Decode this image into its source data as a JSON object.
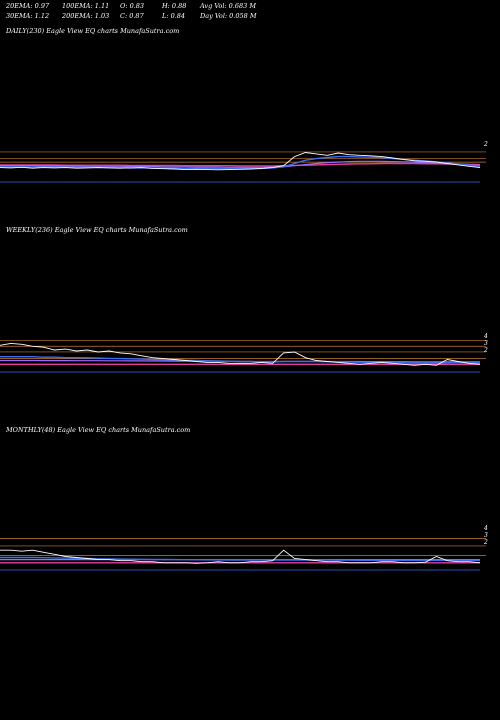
{
  "header": {
    "ema20": "20EMA: 0.97",
    "ema100": "100EMA: 1.11",
    "open": "O: 0.83",
    "high": "H: 0.88",
    "avg_vol": "Avg Vol: 0.683 M",
    "ema30": "30EMA: 1.12",
    "ema200": "200EMA: 1.03",
    "close": "C: 0.87",
    "low": "L: 0.84",
    "day_vol": "Day Vol: 0.058 M"
  },
  "panels": {
    "daily": {
      "title": "DAILY(230) Eagle   View  EQ charts MunafaSutra.com"
    },
    "weekly": {
      "title": "WEEKLY(236) Eagle   View  EQ charts MunafaSutra.com"
    },
    "monthly": {
      "title": "MONTHLY(48) Eagle   View  EQ charts MunafaSutra.com"
    }
  },
  "colors": {
    "price": "#ffffff",
    "ema_blue": "#3a6df0",
    "ema_pink": "#e0409a",
    "ema_purple": "#9b6bff",
    "level_orange": "#c87830",
    "volume": "#ffffff"
  },
  "chart_data": [
    {
      "type": "line",
      "title": "DAILY(230) Eagle   View  EQ charts MunafaSutra.com",
      "y_labels": [
        "2"
      ],
      "series": [
        {
          "values": [
            1.05,
            1.04,
            1.06,
            1.03,
            1.05,
            1.04,
            1.05,
            1.03,
            1.04,
            1.05,
            1.04,
            1.03,
            1.04,
            1.05,
            1.02,
            1.01,
            1.0,
            0.98,
            0.99,
            0.98,
            0.97,
            0.98,
            0.99,
            1.0,
            1.02,
            1.05,
            1.12,
            1.45,
            1.6,
            1.55,
            1.5,
            1.58,
            1.52,
            1.5,
            1.48,
            1.45,
            1.4,
            1.35,
            1.3,
            1.28,
            1.25,
            1.2,
            1.15,
            1.1,
            1.05
          ]
        },
        {
          "values": [
            1.08,
            1.08,
            1.08,
            1.07,
            1.07,
            1.07,
            1.06,
            1.06,
            1.06,
            1.05,
            1.05,
            1.05,
            1.04,
            1.04,
            1.04,
            1.03,
            1.03,
            1.02,
            1.02,
            1.02,
            1.01,
            1.01,
            1.01,
            1.01,
            1.02,
            1.04,
            1.08,
            1.2,
            1.32,
            1.38,
            1.42,
            1.45,
            1.45,
            1.44,
            1.43,
            1.41,
            1.38,
            1.35,
            1.32,
            1.29,
            1.26,
            1.22,
            1.18,
            1.14,
            1.1
          ]
        },
        {
          "values": [
            1.12,
            1.12,
            1.12,
            1.12,
            1.11,
            1.11,
            1.11,
            1.11,
            1.1,
            1.1,
            1.1,
            1.1,
            1.09,
            1.09,
            1.09,
            1.08,
            1.08,
            1.08,
            1.07,
            1.07,
            1.07,
            1.06,
            1.06,
            1.06,
            1.06,
            1.07,
            1.08,
            1.12,
            1.16,
            1.2,
            1.23,
            1.25,
            1.27,
            1.28,
            1.28,
            1.28,
            1.27,
            1.26,
            1.25,
            1.23,
            1.21,
            1.19,
            1.17,
            1.15,
            1.13
          ]
        },
        {
          "values": [
            1.15,
            1.15,
            1.15,
            1.15,
            1.15,
            1.15,
            1.14,
            1.14,
            1.14,
            1.14,
            1.14,
            1.14,
            1.13,
            1.13,
            1.13,
            1.13,
            1.13,
            1.12,
            1.12,
            1.12,
            1.12,
            1.12,
            1.11,
            1.11,
            1.11,
            1.11,
            1.12,
            1.13,
            1.14,
            1.15,
            1.16,
            1.17,
            1.18,
            1.19,
            1.19,
            1.2,
            1.2,
            1.2,
            1.2,
            1.19,
            1.19,
            1.18,
            1.18,
            1.17,
            1.16
          ]
        }
      ],
      "levels": [
        1.62,
        1.38,
        1.25
      ],
      "ylim": [
        0.6,
        2.2
      ]
    },
    {
      "type": "line",
      "title": "WEEKLY(236) Eagle   View  EQ charts MunafaSutra.com",
      "y_labels": [
        "4",
        "3",
        "2"
      ],
      "series": [
        {
          "values": [
            3.1,
            3.3,
            3.2,
            3.0,
            2.9,
            2.6,
            2.7,
            2.5,
            2.6,
            2.4,
            2.5,
            2.3,
            2.2,
            2.0,
            1.8,
            1.7,
            1.6,
            1.5,
            1.4,
            1.3,
            1.3,
            1.2,
            1.2,
            1.2,
            1.3,
            1.2,
            2.3,
            2.4,
            1.8,
            1.5,
            1.4,
            1.3,
            1.2,
            1.1,
            1.2,
            1.3,
            1.2,
            1.1,
            1.0,
            1.1,
            1.0,
            1.6,
            1.4,
            1.2,
            1.1
          ]
        },
        {
          "values": [
            1.9,
            1.9,
            1.9,
            1.9,
            1.85,
            1.85,
            1.8,
            1.8,
            1.78,
            1.75,
            1.72,
            1.7,
            1.68,
            1.65,
            1.6,
            1.58,
            1.55,
            1.52,
            1.5,
            1.48,
            1.45,
            1.43,
            1.4,
            1.38,
            1.36,
            1.35,
            1.38,
            1.4,
            1.4,
            1.39,
            1.37,
            1.35,
            1.33,
            1.31,
            1.3,
            1.29,
            1.28,
            1.27,
            1.26,
            1.25,
            1.24,
            1.27,
            1.28,
            1.27,
            1.26
          ]
        },
        {
          "values": [
            1.5,
            1.5,
            1.5,
            1.5,
            1.49,
            1.49,
            1.49,
            1.48,
            1.48,
            1.48,
            1.47,
            1.47,
            1.46,
            1.46,
            1.45,
            1.45,
            1.44,
            1.44,
            1.43,
            1.43,
            1.42,
            1.42,
            1.41,
            1.41,
            1.4,
            1.4,
            1.41,
            1.41,
            1.41,
            1.41,
            1.4,
            1.4,
            1.39,
            1.39,
            1.38,
            1.38,
            1.37,
            1.37,
            1.36,
            1.36,
            1.35,
            1.36,
            1.36,
            1.36,
            1.35
          ]
        },
        {
          "values": [
            1.1,
            1.1,
            1.1,
            1.1,
            1.1,
            1.1,
            1.1,
            1.1,
            1.1,
            1.1,
            1.1,
            1.1,
            1.1,
            1.1,
            1.1,
            1.1,
            1.1,
            1.1,
            1.1,
            1.1,
            1.1,
            1.1,
            1.1,
            1.1,
            1.1,
            1.1,
            1.1,
            1.1,
            1.1,
            1.1,
            1.1,
            1.1,
            1.1,
            1.1,
            1.1,
            1.1,
            1.1,
            1.1,
            1.1,
            1.1,
            1.1,
            1.1,
            1.1,
            1.1,
            1.1
          ]
        }
      ],
      "levels": [
        3.6,
        3.0,
        2.4,
        1.7
      ],
      "ylim": [
        0.5,
        4.5
      ]
    },
    {
      "type": "line",
      "title": "MONTHLY(48) Eagle   View  EQ charts MunafaSutra.com",
      "y_labels": [
        "4",
        "3",
        "2"
      ],
      "series": [
        {
          "values": [
            2.2,
            2.2,
            2.1,
            2.2,
            2.0,
            1.8,
            1.6,
            1.5,
            1.4,
            1.3,
            1.3,
            1.2,
            1.2,
            1.1,
            1.1,
            1.0,
            1.0,
            1.0,
            0.95,
            1.0,
            1.1,
            1.0,
            1.0,
            1.1,
            1.1,
            1.2,
            2.2,
            1.4,
            1.3,
            1.2,
            1.1,
            1.1,
            1.0,
            1.0,
            1.0,
            1.1,
            1.1,
            1.0,
            1.0,
            1.05,
            1.6,
            1.2,
            1.1,
            1.1,
            1.0
          ]
        },
        {
          "values": [
            1.5,
            1.5,
            1.5,
            1.5,
            1.48,
            1.46,
            1.44,
            1.42,
            1.4,
            1.38,
            1.36,
            1.35,
            1.34,
            1.33,
            1.32,
            1.31,
            1.3,
            1.29,
            1.28,
            1.27,
            1.27,
            1.26,
            1.26,
            1.25,
            1.25,
            1.25,
            1.26,
            1.26,
            1.26,
            1.25,
            1.25,
            1.24,
            1.24,
            1.23,
            1.23,
            1.23,
            1.23,
            1.22,
            1.22,
            1.22,
            1.23,
            1.23,
            1.22,
            1.22,
            1.22
          ]
        },
        {
          "values": [
            1.3,
            1.3,
            1.3,
            1.3,
            1.3,
            1.3,
            1.3,
            1.3,
            1.3,
            1.3,
            1.3,
            1.3,
            1.3,
            1.3,
            1.3,
            1.3,
            1.3,
            1.3,
            1.3,
            1.3,
            1.3,
            1.3,
            1.3,
            1.3,
            1.3,
            1.3,
            1.3,
            1.3,
            1.3,
            1.3,
            1.3,
            1.3,
            1.3,
            1.3,
            1.3,
            1.3,
            1.3,
            1.3,
            1.3,
            1.3,
            1.3,
            1.3,
            1.3,
            1.3,
            1.3
          ]
        },
        {
          "values": [
            1.0,
            1.0,
            1.0,
            1.0,
            1.0,
            1.0,
            1.0,
            1.0,
            1.0,
            1.0,
            1.0,
            1.0,
            1.0,
            1.0,
            1.0,
            1.0,
            1.0,
            1.0,
            1.0,
            1.0,
            1.0,
            1.0,
            1.0,
            1.0,
            1.0,
            1.0,
            1.0,
            1.0,
            1.0,
            1.0,
            1.0,
            1.0,
            1.0,
            1.0,
            1.0,
            1.0,
            1.0,
            1.0,
            1.0,
            1.0,
            1.0,
            1.0,
            1.0,
            1.0,
            1.0
          ]
        }
      ],
      "levels": [
        3.3,
        2.6,
        1.7
      ],
      "ylim": [
        0.5,
        4.5
      ]
    }
  ]
}
